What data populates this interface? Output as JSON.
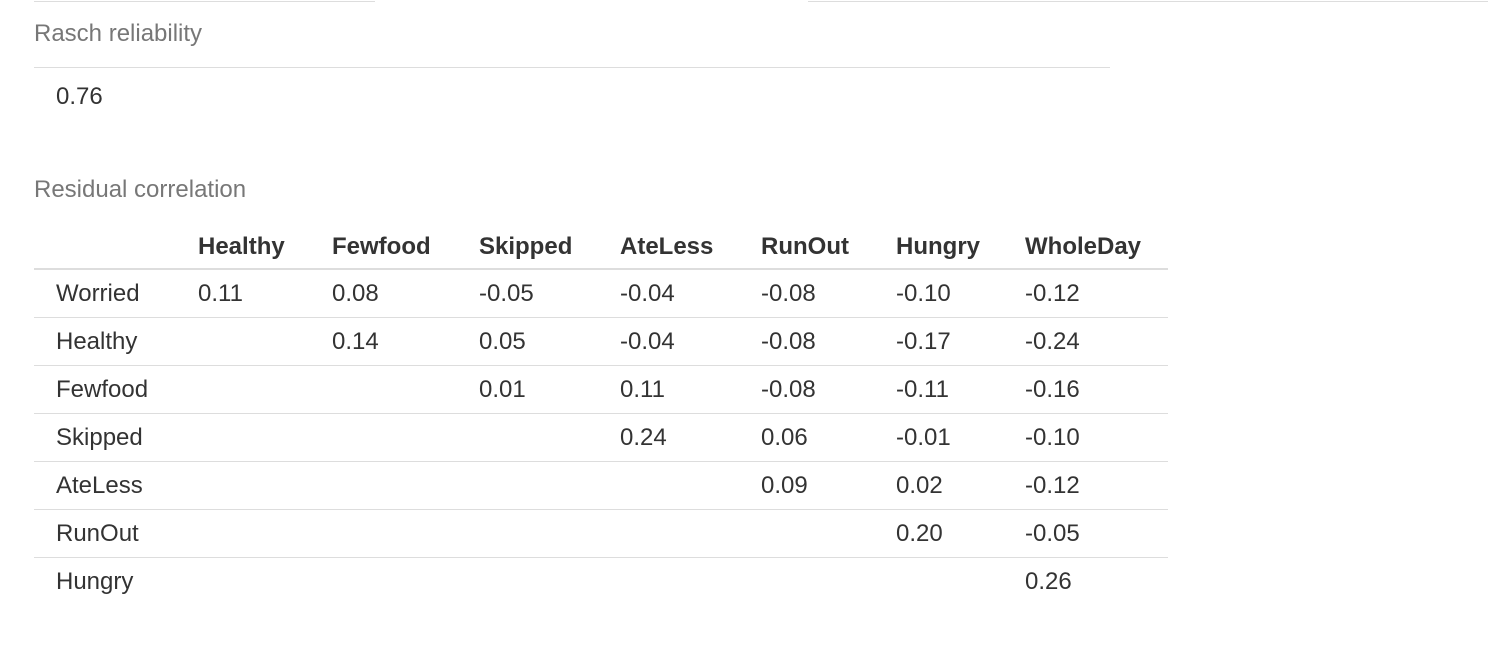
{
  "reliability": {
    "caption": "Rasch reliability",
    "value": "0.76"
  },
  "residual": {
    "caption": "Residual correlation",
    "columns": [
      "",
      "Healthy",
      "Fewfood",
      "Skipped",
      "AteLess",
      "RunOut",
      "Hungry",
      "WholeDay"
    ],
    "rows": [
      {
        "label": "Worried",
        "cells": [
          "0.11",
          "0.08",
          "-0.05",
          "-0.04",
          "-0.08",
          "-0.10",
          "-0.12"
        ]
      },
      {
        "label": "Healthy",
        "cells": [
          "",
          "0.14",
          "0.05",
          "-0.04",
          "-0.08",
          "-0.17",
          "-0.24"
        ]
      },
      {
        "label": "Fewfood",
        "cells": [
          "",
          "",
          "0.01",
          "0.11",
          "-0.08",
          "-0.11",
          "-0.16"
        ]
      },
      {
        "label": "Skipped",
        "cells": [
          "",
          "",
          "",
          "0.24",
          "0.06",
          "-0.01",
          "-0.10"
        ]
      },
      {
        "label": "AteLess",
        "cells": [
          "",
          "",
          "",
          "",
          "0.09",
          "0.02",
          "-0.12"
        ]
      },
      {
        "label": "RunOut",
        "cells": [
          "",
          "",
          "",
          "",
          "",
          "0.20",
          "-0.05"
        ]
      },
      {
        "label": "Hungry",
        "cells": [
          "",
          "",
          "",
          "",
          "",
          "",
          "0.26"
        ]
      }
    ]
  }
}
